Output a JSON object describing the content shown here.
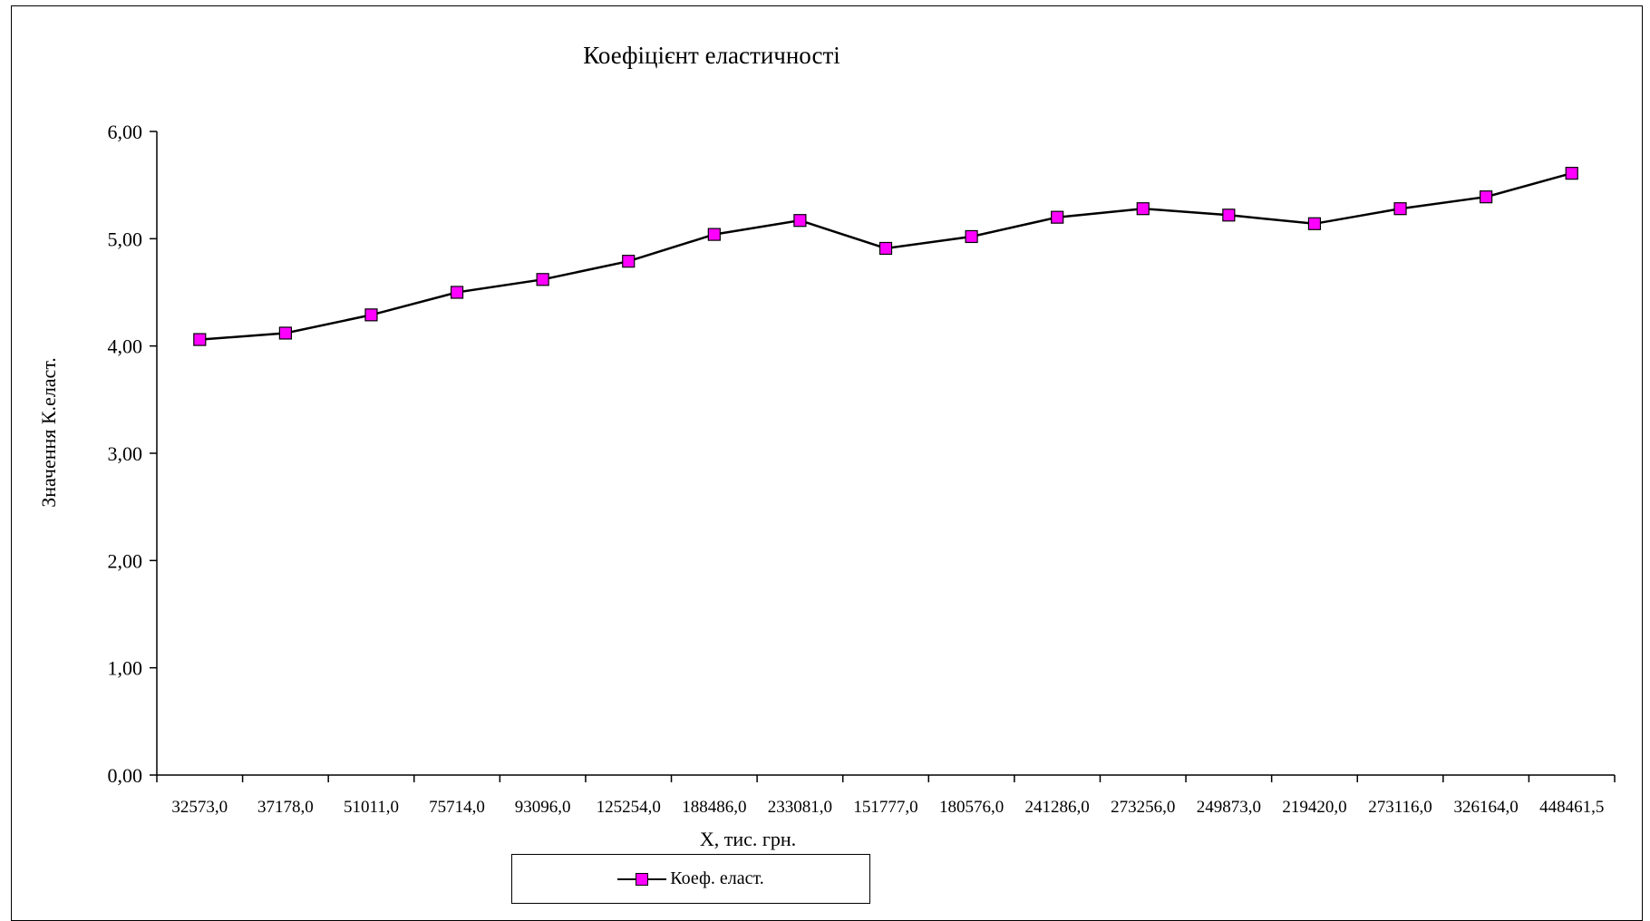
{
  "chart_data": {
    "type": "line",
    "title": "Коефіцієнт еластичності",
    "xlabel": "X, тис. грн.",
    "ylabel": "Значення К.еласт.",
    "categories": [
      "32573,0",
      "37178,0",
      "51011,0",
      "75714,0",
      "93096,0",
      "125254,0",
      "188486,0",
      "233081,0",
      "151777,0",
      "180576,0",
      "241286,0",
      "273256,0",
      "249873,0",
      "219420,0",
      "273116,0",
      "326164,0",
      "448461,5"
    ],
    "series": [
      {
        "name": "Коеф. еласт.",
        "values": [
          4.06,
          4.12,
          4.29,
          4.5,
          4.62,
          4.79,
          5.04,
          5.17,
          4.91,
          5.02,
          5.2,
          5.28,
          5.22,
          5.14,
          5.28,
          5.39,
          5.61
        ],
        "color": "#000000",
        "marker_color": "#ff00ff",
        "marker": "square"
      }
    ],
    "ylim": [
      0,
      6
    ],
    "yticks": [
      "0,00",
      "1,00",
      "2,00",
      "3,00",
      "4,00",
      "5,00",
      "6,00"
    ],
    "grid": false,
    "legend_position": "bottom"
  }
}
